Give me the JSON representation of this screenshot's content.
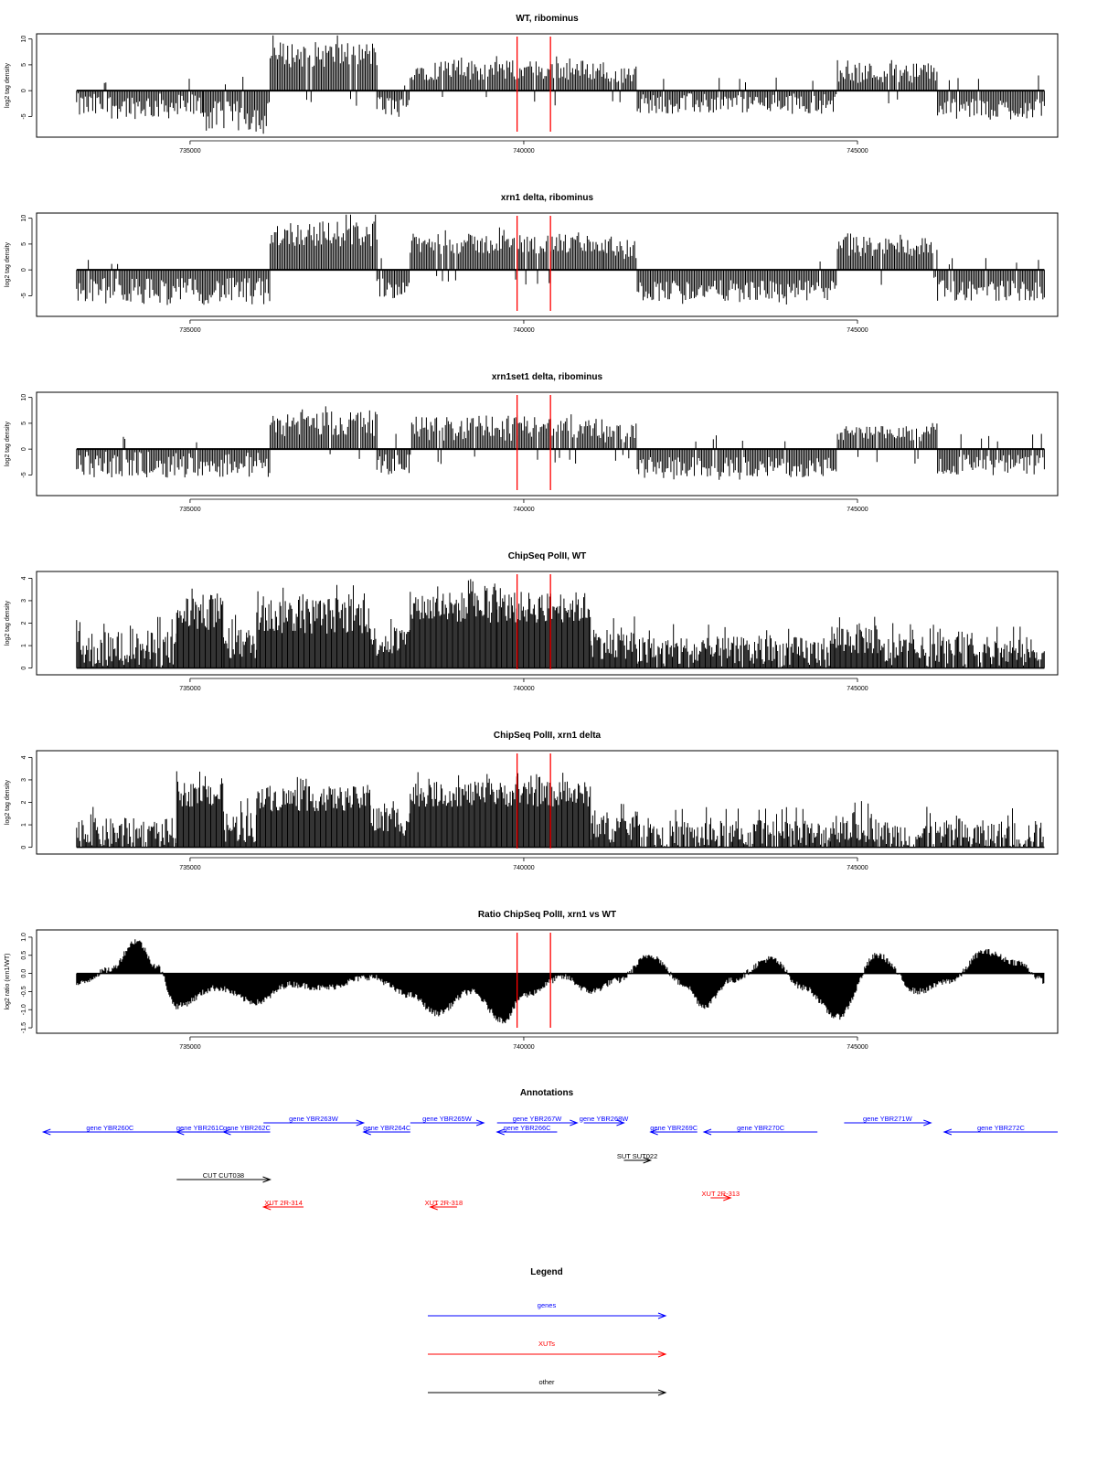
{
  "chart_data": [
    {
      "type": "area",
      "title": "WT, ribominus",
      "xlabel": "",
      "ylabel": "log2 tag density",
      "yticks": [
        "-5",
        "0",
        "5",
        "10"
      ],
      "ylim": [
        -9,
        11
      ],
      "xlim": [
        732700,
        748000
      ],
      "xticks": [
        "735000",
        "740000",
        "745000"
      ],
      "xtick_values": [
        735000,
        740000,
        745000
      ],
      "markers": [
        739900,
        740400
      ],
      "segments": [
        {
          "x": [
            733300,
            735200
          ],
          "y": -3,
          "amp": 2.5
        },
        {
          "x": [
            735200,
            736200
          ],
          "y": -5,
          "amp": 3
        },
        {
          "x": [
            736200,
            737800
          ],
          "y": 7,
          "amp": 2.5
        },
        {
          "x": [
            737800,
            738300
          ],
          "y": -3,
          "amp": 2
        },
        {
          "x": [
            738300,
            739900
          ],
          "y": 4,
          "amp": 2
        },
        {
          "x": [
            739900,
            741200
          ],
          "y": 4,
          "amp": 2
        },
        {
          "x": [
            741200,
            741700
          ],
          "y": 3,
          "amp": 1.5
        },
        {
          "x": [
            741700,
            744700
          ],
          "y": -2.5,
          "amp": 2
        },
        {
          "x": [
            744700,
            746200
          ],
          "y": 3.5,
          "amp": 2
        },
        {
          "x": [
            746200,
            747800
          ],
          "y": -3.5,
          "amp": 2
        }
      ]
    },
    {
      "type": "area",
      "title": "xrn1 delta, ribominus",
      "xlabel": "",
      "ylabel": "log2 tag density",
      "yticks": [
        "-5",
        "0",
        "5",
        "10"
      ],
      "ylim": [
        -9,
        11
      ],
      "xlim": [
        732700,
        748000
      ],
      "xticks": [
        "735000",
        "740000",
        "745000"
      ],
      "xtick_values": [
        735000,
        740000,
        745000
      ],
      "markers": [
        739900,
        740400
      ],
      "segments": [
        {
          "x": [
            733300,
            736200
          ],
          "y": -4,
          "amp": 2.5
        },
        {
          "x": [
            736200,
            737800
          ],
          "y": 7,
          "amp": 2.5
        },
        {
          "x": [
            737800,
            738300
          ],
          "y": -3.5,
          "amp": 2
        },
        {
          "x": [
            738300,
            739900
          ],
          "y": 5,
          "amp": 2
        },
        {
          "x": [
            739900,
            741200
          ],
          "y": 5,
          "amp": 2
        },
        {
          "x": [
            741200,
            741700
          ],
          "y": 4,
          "amp": 2
        },
        {
          "x": [
            741700,
            744700
          ],
          "y": -4,
          "amp": 2
        },
        {
          "x": [
            744700,
            746200
          ],
          "y": 4.5,
          "amp": 2
        },
        {
          "x": [
            746200,
            747800
          ],
          "y": -4,
          "amp": 2
        }
      ]
    },
    {
      "type": "area",
      "title": "xrn1set1 delta, ribominus",
      "xlabel": "",
      "ylabel": "log2 tag density",
      "yticks": [
        "-5",
        "0",
        "5",
        "10"
      ],
      "ylim": [
        -9,
        11
      ],
      "xlim": [
        732700,
        748000
      ],
      "xticks": [
        "735000",
        "740000",
        "745000"
      ],
      "xtick_values": [
        735000,
        740000,
        745000
      ],
      "markers": [
        739900,
        740400
      ],
      "segments": [
        {
          "x": [
            733300,
            736200
          ],
          "y": -3,
          "amp": 2.5
        },
        {
          "x": [
            736200,
            737800
          ],
          "y": 5,
          "amp": 2.5
        },
        {
          "x": [
            737800,
            738300
          ],
          "y": -3,
          "amp": 2
        },
        {
          "x": [
            738300,
            739900
          ],
          "y": 4,
          "amp": 2.5
        },
        {
          "x": [
            739900,
            741200
          ],
          "y": 4,
          "amp": 2
        },
        {
          "x": [
            741200,
            741700
          ],
          "y": 3,
          "amp": 2
        },
        {
          "x": [
            741700,
            744700
          ],
          "y": -3.5,
          "amp": 2
        },
        {
          "x": [
            744700,
            746200
          ],
          "y": 3,
          "amp": 1.5
        },
        {
          "x": [
            746200,
            747800
          ],
          "y": -3,
          "amp": 2
        }
      ]
    },
    {
      "type": "bar",
      "title": "ChipSeq PolII, WT",
      "xlabel": "",
      "ylabel": "log2 tag density",
      "yticks": [
        "0",
        "1",
        "2",
        "3",
        "4"
      ],
      "ylim": [
        -0.3,
        4.3
      ],
      "xlim": [
        732700,
        748000
      ],
      "xticks": [
        "735000",
        "740000",
        "745000"
      ],
      "xtick_values": [
        735000,
        740000,
        745000
      ],
      "markers": [
        739900,
        740400
      ],
      "segments": [
        {
          "x": [
            733300,
            734800
          ],
          "y": 1.2,
          "amp": 1.2
        },
        {
          "x": [
            734800,
            735500
          ],
          "y": 2.8,
          "amp": 1.2
        },
        {
          "x": [
            735500,
            736000
          ],
          "y": 1.4,
          "amp": 1
        },
        {
          "x": [
            736000,
            737700
          ],
          "y": 2.7,
          "amp": 1.2
        },
        {
          "x": [
            737700,
            738300
          ],
          "y": 1.5,
          "amp": 1
        },
        {
          "x": [
            738300,
            739600
          ],
          "y": 3,
          "amp": 1
        },
        {
          "x": [
            739600,
            741000
          ],
          "y": 3,
          "amp": 1
        },
        {
          "x": [
            741000,
            741700
          ],
          "y": 1.4,
          "amp": 1
        },
        {
          "x": [
            741700,
            744600
          ],
          "y": 1,
          "amp": 1
        },
        {
          "x": [
            744600,
            745300
          ],
          "y": 1.6,
          "amp": 1
        },
        {
          "x": [
            745300,
            747800
          ],
          "y": 1,
          "amp": 1
        }
      ]
    },
    {
      "type": "bar",
      "title": "ChipSeq PolII, xrn1 delta",
      "xlabel": "",
      "ylabel": "log2 tag density",
      "yticks": [
        "0",
        "1",
        "2",
        "3",
        "4"
      ],
      "ylim": [
        -0.3,
        4.3
      ],
      "xlim": [
        732700,
        748000
      ],
      "xticks": [
        "735000",
        "740000",
        "745000"
      ],
      "xtick_values": [
        735000,
        740000,
        745000
      ],
      "markers": [
        739900,
        740400
      ],
      "segments": [
        {
          "x": [
            733300,
            734800
          ],
          "y": 0.9,
          "amp": 1
        },
        {
          "x": [
            734800,
            735500
          ],
          "y": 2.6,
          "amp": 0.8
        },
        {
          "x": [
            735500,
            736000
          ],
          "y": 1.2,
          "amp": 1
        },
        {
          "x": [
            736000,
            737700
          ],
          "y": 2.4,
          "amp": 0.8
        },
        {
          "x": [
            737700,
            738300
          ],
          "y": 1.5,
          "amp": 1
        },
        {
          "x": [
            738300,
            739600
          ],
          "y": 2.6,
          "amp": 0.8
        },
        {
          "x": [
            739600,
            741000
          ],
          "y": 2.6,
          "amp": 0.8
        },
        {
          "x": [
            741000,
            741700
          ],
          "y": 1.2,
          "amp": 1
        },
        {
          "x": [
            741700,
            744600
          ],
          "y": 0.8,
          "amp": 1
        },
        {
          "x": [
            744600,
            745300
          ],
          "y": 1.2,
          "amp": 1
        },
        {
          "x": [
            745300,
            747800
          ],
          "y": 0.8,
          "amp": 1
        }
      ]
    },
    {
      "type": "area",
      "title": "Ratio ChipSeq PolII, xrn1 vs WT",
      "xlabel": "",
      "ylabel": "log2 ratio (xrn1/WT)",
      "yticks": [
        "-1.5",
        "-1.0",
        "-0.5",
        "0.0",
        "0.5",
        "1.0"
      ],
      "ylim": [
        -1.65,
        1.2
      ],
      "xlim": [
        732700,
        748000
      ],
      "xticks": [
        "735000",
        "740000",
        "745000"
      ],
      "xtick_values": [
        735000,
        740000,
        745000
      ],
      "markers": [
        739900,
        740400
      ],
      "profile": [
        {
          "x": 733300,
          "y": -0.3
        },
        {
          "x": 733800,
          "y": 0.1
        },
        {
          "x": 734200,
          "y": 0.9
        },
        {
          "x": 734500,
          "y": 0.2
        },
        {
          "x": 734800,
          "y": -0.9
        },
        {
          "x": 735400,
          "y": -0.4
        },
        {
          "x": 736000,
          "y": -0.8
        },
        {
          "x": 736500,
          "y": -0.3
        },
        {
          "x": 737000,
          "y": -0.4
        },
        {
          "x": 737700,
          "y": -0.1
        },
        {
          "x": 738300,
          "y": -0.6
        },
        {
          "x": 738700,
          "y": -1.1
        },
        {
          "x": 739200,
          "y": -0.5
        },
        {
          "x": 739700,
          "y": -1.3
        },
        {
          "x": 740000,
          "y": -0.6
        },
        {
          "x": 740600,
          "y": -0.1
        },
        {
          "x": 741000,
          "y": -0.5
        },
        {
          "x": 741400,
          "y": -0.2
        },
        {
          "x": 741900,
          "y": 0.5
        },
        {
          "x": 742400,
          "y": -0.3
        },
        {
          "x": 742700,
          "y": -0.9
        },
        {
          "x": 743100,
          "y": -0.2
        },
        {
          "x": 743700,
          "y": 0.4
        },
        {
          "x": 744200,
          "y": -0.4
        },
        {
          "x": 744700,
          "y": -1.2
        },
        {
          "x": 745300,
          "y": 0.5
        },
        {
          "x": 745900,
          "y": -0.5
        },
        {
          "x": 746400,
          "y": -0.2
        },
        {
          "x": 746900,
          "y": 0.6
        },
        {
          "x": 747400,
          "y": 0.3
        },
        {
          "x": 747800,
          "y": -0.2
        }
      ]
    }
  ],
  "annotations": {
    "title": "Annotations",
    "items": [
      {
        "label": "gene YBR260C",
        "kind": "gene",
        "dir": "left",
        "x1": 732800,
        "x2": 734800,
        "row": 1
      },
      {
        "label": "gene YBR261C",
        "kind": "gene",
        "dir": "left",
        "x1": 734800,
        "x2": 735500,
        "row": 1
      },
      {
        "label": "gene YBR262C",
        "kind": "gene",
        "dir": "left",
        "x1": 735500,
        "x2": 736200,
        "row": 1
      },
      {
        "label": "gene YBR263W",
        "kind": "gene",
        "dir": "right",
        "x1": 736100,
        "x2": 737600,
        "row": 0
      },
      {
        "label": "gene YBR264C",
        "kind": "gene",
        "dir": "left",
        "x1": 737600,
        "x2": 738300,
        "row": 1
      },
      {
        "label": "gene YBR265W",
        "kind": "gene",
        "dir": "right",
        "x1": 738300,
        "x2": 739400,
        "row": 0
      },
      {
        "label": "gene YBR266C",
        "kind": "gene",
        "dir": "left",
        "x1": 739600,
        "x2": 740500,
        "row": 1
      },
      {
        "label": "gene YBR267W",
        "kind": "gene",
        "dir": "right",
        "x1": 739600,
        "x2": 740800,
        "row": 0
      },
      {
        "label": "gene YBR268W",
        "kind": "gene",
        "dir": "right",
        "x1": 740900,
        "x2": 741500,
        "row": 0
      },
      {
        "label": "gene YBR269C",
        "kind": "gene",
        "dir": "left",
        "x1": 741900,
        "x2": 742600,
        "row": 1
      },
      {
        "label": "gene YBR270C",
        "kind": "gene",
        "dir": "left",
        "x1": 742700,
        "x2": 744400,
        "row": 1
      },
      {
        "label": "gene YBR271W",
        "kind": "gene",
        "dir": "right",
        "x1": 744800,
        "x2": 746100,
        "row": 0
      },
      {
        "label": "gene YBR272C",
        "kind": "gene",
        "dir": "left",
        "x1": 746300,
        "x2": 748000,
        "row": 1
      },
      {
        "label": "SUT SUT022",
        "kind": "other",
        "dir": "right",
        "x1": 741500,
        "x2": 741900,
        "row": 2
      },
      {
        "label": "CUT CUT038",
        "kind": "other",
        "dir": "right",
        "x1": 734800,
        "x2": 736200,
        "row": 3
      },
      {
        "label": "XUT 2R-313",
        "kind": "xut",
        "dir": "right",
        "x1": 742800,
        "x2": 743100,
        "row": 4
      },
      {
        "label": "XUT 2R-314",
        "kind": "xut",
        "dir": "left",
        "x1": 736100,
        "x2": 736700,
        "row": 5
      },
      {
        "label": "XUT 2R-318",
        "kind": "xut",
        "dir": "left",
        "x1": 738600,
        "x2": 739000,
        "row": 5
      }
    ]
  },
  "legend": {
    "title": "Legend",
    "items": [
      {
        "label": "genes",
        "color": "#0000ff"
      },
      {
        "label": "XUTs",
        "color": "#ff0000"
      },
      {
        "label": "other",
        "color": "#000000"
      }
    ]
  },
  "colors": {
    "gene": "#0000ff",
    "xut": "#ff0000",
    "other": "#000000",
    "marker": "#ff0000",
    "data": "#000000"
  }
}
